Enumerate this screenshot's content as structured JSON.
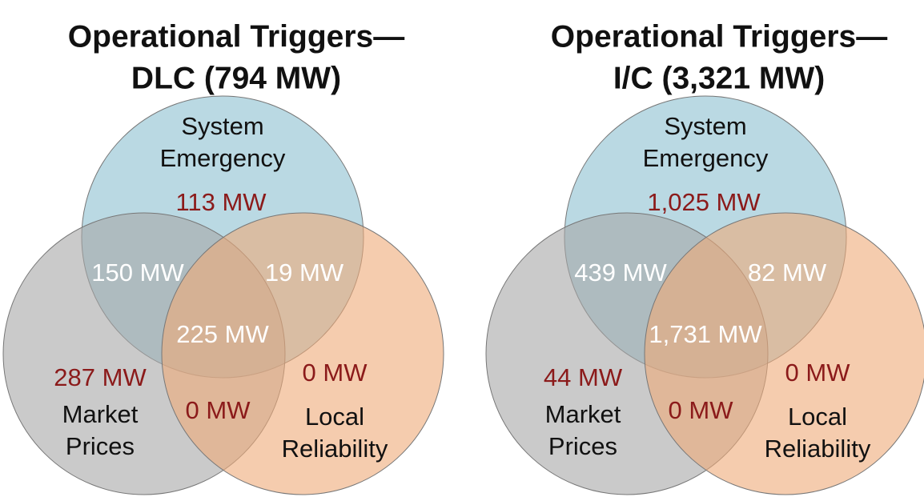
{
  "diagrams": [
    {
      "title": [
        "Operational Triggers—",
        "DLC (794 MW)"
      ],
      "sets": [
        {
          "label": [
            "System",
            "Emergency"
          ]
        },
        {
          "label": [
            "Market",
            "Prices"
          ]
        },
        {
          "label": [
            "Local",
            "Reliability"
          ]
        }
      ],
      "regions": {
        "system_only": "113 MW",
        "system_market": "150 MW",
        "system_local": "19 MW",
        "all_three": "225 MW",
        "market_only": "287 MW",
        "market_local": "0 MW",
        "local_only": "0 MW"
      }
    },
    {
      "title": [
        "Operational Triggers—",
        "I/C (3,321 MW)"
      ],
      "sets": [
        {
          "label": [
            "System",
            "Emergency"
          ]
        },
        {
          "label": [
            "Market",
            "Prices"
          ]
        },
        {
          "label": [
            "Local",
            "Reliability"
          ]
        }
      ],
      "regions": {
        "system_only": "1,025 MW",
        "system_market": "439 MW",
        "system_local": "82 MW",
        "all_three": "1,731 MW",
        "market_only": "44 MW",
        "market_local": "0 MW",
        "local_only": "0 MW"
      }
    }
  ]
}
